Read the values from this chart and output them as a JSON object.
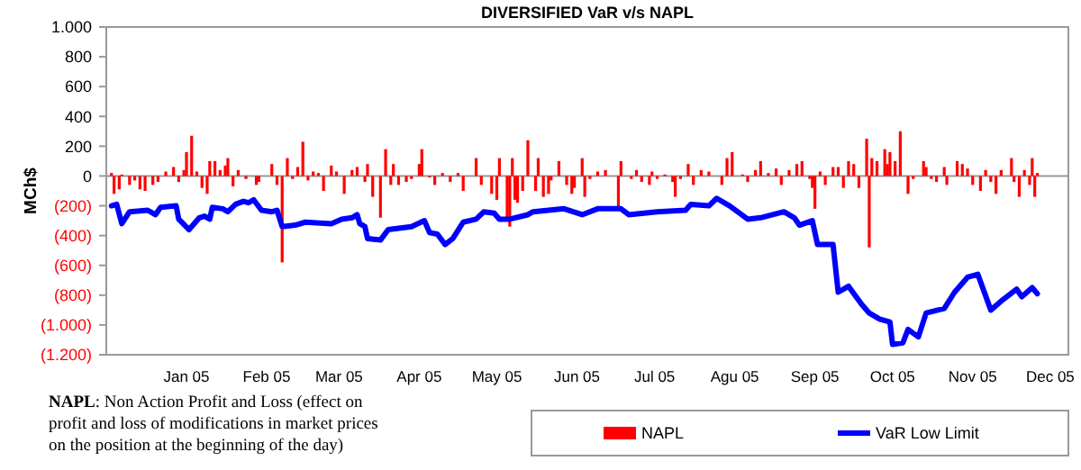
{
  "chart_data": {
    "type": "bar",
    "title": "DIVERSIFIED VaR v/s NAPL",
    "ylabel": "MCh$",
    "annotations": [
      "NAPL: Non Action Profit and Loss (effect on profit and loss of modifications in market prices on the position at the beginning of the day)"
    ],
    "xlim": [
      "2004-12-01",
      "2005-12-08"
    ],
    "xticks": [
      {
        "value": "2005-01-01",
        "label": "Jan 05"
      },
      {
        "value": "2005-02-01",
        "label": "Feb 05"
      },
      {
        "value": "2005-03-01",
        "label": "Mar 05"
      },
      {
        "value": "2005-04-01",
        "label": "Apr 05"
      },
      {
        "value": "2005-05-01",
        "label": "May 05"
      },
      {
        "value": "2005-06-01",
        "label": "Jun 05"
      },
      {
        "value": "2005-07-01",
        "label": "Jul 05"
      },
      {
        "value": "2005-08-01",
        "label": "Agu 05"
      },
      {
        "value": "2005-09-01",
        "label": "Sep 05"
      },
      {
        "value": "2005-10-01",
        "label": "Oct 05"
      },
      {
        "value": "2005-11-01",
        "label": "Nov 05"
      },
      {
        "value": "2005-12-01",
        "label": "Dec 05"
      }
    ],
    "ylim": [
      -1200,
      1000
    ],
    "yticks": [
      {
        "value": 1000,
        "label": "1.000"
      },
      800,
      600,
      400,
      200,
      0,
      {
        "value": -200,
        "label": "(200)"
      },
      {
        "value": -400,
        "label": "(400)"
      },
      {
        "value": -600,
        "label": "(600)"
      },
      {
        "value": -800,
        "label": "(800)"
      },
      {
        "value": -1000,
        "label": "(1.000)"
      },
      {
        "value": -1200,
        "label": "(1.200)"
      }
    ],
    "legend": "bottom",
    "series": [
      {
        "name": "NAPL",
        "color": "#ff0000",
        "x": [
          "2004-12-03",
          "2004-12-04",
          "2004-12-06",
          "2004-12-07",
          "2004-12-10",
          "2004-12-12",
          "2004-12-14",
          "2004-12-16",
          "2004-12-19",
          "2004-12-21",
          "2004-12-24",
          "2004-12-27",
          "2004-12-29",
          "2004-12-31",
          "2005-01-01",
          "2005-01-03",
          "2005-01-05",
          "2005-01-07",
          "2005-01-09",
          "2005-01-10",
          "2005-01-12",
          "2005-01-14",
          "2005-01-16",
          "2005-01-17",
          "2005-01-19",
          "2005-01-21",
          "2005-01-24",
          "2005-01-28",
          "2005-01-29",
          "2005-02-03",
          "2005-02-05",
          "2005-02-07",
          "2005-02-09",
          "2005-02-11",
          "2005-02-13",
          "2005-02-15",
          "2005-02-17",
          "2005-02-19",
          "2005-02-21",
          "2005-02-23",
          "2005-02-26",
          "2005-02-28",
          "2005-03-03",
          "2005-03-06",
          "2005-03-08",
          "2005-03-11",
          "2005-03-12",
          "2005-03-14",
          "2005-03-17",
          "2005-03-19",
          "2005-03-21",
          "2005-03-22",
          "2005-03-24",
          "2005-03-27",
          "2005-03-29",
          "2005-04-01",
          "2005-04-02",
          "2005-04-05",
          "2005-04-07",
          "2005-04-10",
          "2005-04-13",
          "2005-04-16",
          "2005-04-18",
          "2005-04-23",
          "2005-04-25",
          "2005-04-29",
          "2005-05-01",
          "2005-05-02",
          "2005-05-05",
          "2005-05-06",
          "2005-05-07",
          "2005-05-08",
          "2005-05-09",
          "2005-05-11",
          "2005-05-13",
          "2005-05-16",
          "2005-05-17",
          "2005-05-19",
          "2005-05-21",
          "2005-05-22",
          "2005-05-25",
          "2005-05-28",
          "2005-05-30",
          "2005-05-31",
          "2005-06-03",
          "2005-06-04",
          "2005-06-06",
          "2005-06-09",
          "2005-06-12",
          "2005-06-17",
          "2005-06-18",
          "2005-06-22",
          "2005-06-24",
          "2005-06-26",
          "2005-06-29",
          "2005-06-30",
          "2005-07-02",
          "2005-07-05",
          "2005-07-08",
          "2005-07-09",
          "2005-07-11",
          "2005-07-14",
          "2005-07-16",
          "2005-07-19",
          "2005-07-22",
          "2005-07-27",
          "2005-07-29",
          "2005-07-31",
          "2005-08-04",
          "2005-08-06",
          "2005-08-09",
          "2005-08-11",
          "2005-08-14",
          "2005-08-17",
          "2005-08-19",
          "2005-08-22",
          "2005-08-25",
          "2005-08-27",
          "2005-08-30",
          "2005-08-31",
          "2005-09-01",
          "2005-09-03",
          "2005-09-05",
          "2005-09-08",
          "2005-09-10",
          "2005-09-12",
          "2005-09-14",
          "2005-09-16",
          "2005-09-18",
          "2005-09-21",
          "2005-09-22",
          "2005-09-23",
          "2005-09-25",
          "2005-09-28",
          "2005-09-29",
          "2005-09-30",
          "2005-10-02",
          "2005-10-04",
          "2005-10-07",
          "2005-10-09",
          "2005-10-13",
          "2005-10-14",
          "2005-10-16",
          "2005-10-18",
          "2005-10-21",
          "2005-10-22",
          "2005-10-26",
          "2005-10-28",
          "2005-10-30",
          "2005-11-01",
          "2005-11-04",
          "2005-11-06",
          "2005-11-08",
          "2005-11-10",
          "2005-11-12",
          "2005-11-16",
          "2005-11-17",
          "2005-11-19",
          "2005-11-21",
          "2005-11-23",
          "2005-11-24",
          "2005-11-25",
          "2005-11-26"
        ],
        "values": [
          20,
          -120,
          -90,
          10,
          -60,
          -30,
          -90,
          -100,
          -60,
          -40,
          30,
          60,
          -40,
          40,
          160,
          270,
          30,
          -80,
          -120,
          100,
          100,
          40,
          70,
          120,
          -70,
          40,
          -20,
          -60,
          -40,
          80,
          -60,
          -580,
          120,
          -20,
          60,
          230,
          -30,
          30,
          20,
          -100,
          70,
          30,
          -120,
          40,
          60,
          -40,
          80,
          -140,
          -280,
          180,
          -60,
          80,
          -60,
          -40,
          -20,
          80,
          180,
          -10,
          -60,
          20,
          -40,
          20,
          -100,
          120,
          -60,
          -120,
          -160,
          120,
          -300,
          -340,
          120,
          -160,
          -180,
          -100,
          240,
          -100,
          120,
          -140,
          -120,
          -30,
          100,
          -60,
          -120,
          -80,
          120,
          -140,
          -20,
          30,
          40,
          -220,
          100,
          -20,
          40,
          -40,
          -60,
          30,
          -20,
          10,
          -40,
          -140,
          -20,
          80,
          -60,
          40,
          30,
          -60,
          120,
          160,
          10,
          -40,
          40,
          100,
          20,
          50,
          -60,
          40,
          80,
          100,
          -20,
          -80,
          -220,
          30,
          -60,
          60,
          60,
          -80,
          100,
          80,
          -80,
          250,
          -480,
          120,
          100,
          180,
          80,
          160,
          100,
          300,
          -120,
          -20,
          100,
          60,
          -20,
          -40,
          60,
          -60,
          100,
          80,
          50,
          -60,
          -100,
          40,
          -40,
          -120,
          40,
          120,
          -40,
          -140,
          40,
          -60,
          120,
          -140,
          20
        ]
      },
      {
        "name": "VaR Low Limit",
        "type": "line",
        "color": "#0000ff",
        "x": [
          "2004-12-03",
          "2004-12-05",
          "2004-12-07",
          "2004-12-10",
          "2004-12-17",
          "2004-12-20",
          "2004-12-22",
          "2004-12-28",
          "2004-12-29",
          "2005-01-02",
          "2005-01-06",
          "2005-01-08",
          "2005-01-10",
          "2005-01-11",
          "2005-01-15",
          "2005-01-17",
          "2005-01-20",
          "2005-01-23",
          "2005-01-25",
          "2005-01-27",
          "2005-01-30",
          "2005-02-03",
          "2005-02-05",
          "2005-02-07",
          "2005-02-12",
          "2005-02-16",
          "2005-02-26",
          "2005-03-02",
          "2005-03-06",
          "2005-03-08",
          "2005-03-09",
          "2005-03-11",
          "2005-03-12",
          "2005-03-17",
          "2005-03-20",
          "2005-03-29",
          "2005-04-03",
          "2005-04-05",
          "2005-04-08",
          "2005-04-11",
          "2005-04-14",
          "2005-04-18",
          "2005-04-23",
          "2005-04-26",
          "2005-04-30",
          "2005-05-02",
          "2005-05-06",
          "2005-05-13",
          "2005-05-15",
          "2005-05-27",
          "2005-06-03",
          "2005-06-09",
          "2005-06-18",
          "2005-06-21",
          "2005-07-02",
          "2005-07-13",
          "2005-07-15",
          "2005-07-22",
          "2005-07-25",
          "2005-07-30",
          "2005-08-06",
          "2005-08-11",
          "2005-08-20",
          "2005-08-24",
          "2005-08-26",
          "2005-08-31",
          "2005-09-02",
          "2005-09-08",
          "2005-09-10",
          "2005-09-14",
          "2005-09-19",
          "2005-09-22",
          "2005-09-26",
          "2005-09-30",
          "2005-10-01",
          "2005-10-05",
          "2005-10-07",
          "2005-10-11",
          "2005-10-14",
          "2005-10-21",
          "2005-10-25",
          "2005-10-30",
          "2005-11-03",
          "2005-11-08",
          "2005-11-12",
          "2005-11-18",
          "2005-11-20",
          "2005-11-24",
          "2005-11-26"
        ],
        "values": [
          -200,
          -190,
          -320,
          -240,
          -230,
          -260,
          -210,
          -200,
          -290,
          -360,
          -280,
          -270,
          -290,
          -210,
          -220,
          -240,
          -190,
          -170,
          -180,
          -160,
          -230,
          -240,
          -230,
          -340,
          -330,
          -310,
          -320,
          -290,
          -280,
          -260,
          -320,
          -340,
          -420,
          -430,
          -360,
          -340,
          -300,
          -380,
          -390,
          -460,
          -420,
          -310,
          -290,
          -240,
          -250,
          -290,
          -290,
          -260,
          -240,
          -220,
          -260,
          -220,
          -220,
          -260,
          -240,
          -230,
          -190,
          -200,
          -150,
          -200,
          -290,
          -280,
          -240,
          -280,
          -330,
          -300,
          -460,
          -460,
          -780,
          -740,
          -860,
          -920,
          -960,
          -980,
          -1130,
          -1120,
          -1030,
          -1080,
          -920,
          -890,
          -780,
          -680,
          -660,
          -900,
          -840,
          -760,
          -810,
          -750,
          -790
        ]
      }
    ]
  }
}
